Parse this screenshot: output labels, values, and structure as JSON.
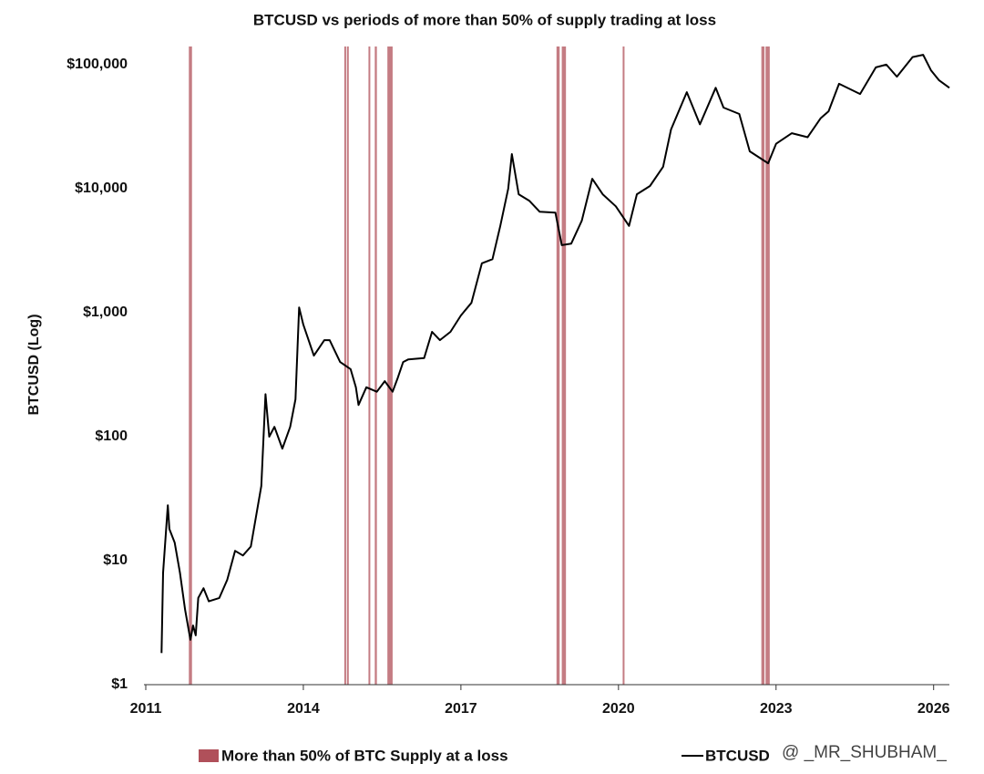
{
  "chart_data": {
    "type": "line",
    "title": "BTCUSD vs periods of more than 50% of supply trading at loss",
    "y_label": "BTCUSD (Log)",
    "log_y": true,
    "xlim": [
      2011,
      2026.3
    ],
    "ylim": [
      1,
      140000
    ],
    "xticks": [
      2011,
      2014,
      2017,
      2020,
      2023,
      2026
    ],
    "yticks": [
      {
        "value": 1,
        "label": "$1"
      },
      {
        "value": 10,
        "label": "$10"
      },
      {
        "value": 100,
        "label": "$100"
      },
      {
        "value": 1000,
        "label": "$1,000"
      },
      {
        "value": 10000,
        "label": "$10,000"
      },
      {
        "value": 100000,
        "label": "$100,000"
      }
    ],
    "bands": {
      "name": "More than 50% of BTC Supply at a loss",
      "color": "#b0505a",
      "ranges": [
        [
          2011.82,
          2011.88
        ],
        [
          2014.78,
          2014.81
        ],
        [
          2014.83,
          2014.85
        ],
        [
          2015.24,
          2015.27
        ],
        [
          2015.36,
          2015.4
        ],
        [
          2015.6,
          2015.7
        ],
        [
          2018.82,
          2018.88
        ],
        [
          2018.92,
          2019.0
        ],
        [
          2020.08,
          2020.11
        ],
        [
          2022.72,
          2022.78
        ],
        [
          2022.8,
          2022.88
        ]
      ]
    },
    "x": [
      2011.3,
      2011.33,
      2011.42,
      2011.45,
      2011.55,
      2011.65,
      2011.75,
      2011.85,
      2011.9,
      2011.95,
      2012.0,
      2012.1,
      2012.2,
      2012.4,
      2012.55,
      2012.7,
      2012.85,
      2013.0,
      2013.2,
      2013.28,
      2013.35,
      2013.45,
      2013.6,
      2013.75,
      2013.85,
      2013.92,
      2014.0,
      2014.1,
      2014.2,
      2014.4,
      2014.5,
      2014.7,
      2014.9,
      2015.0,
      2015.05,
      2015.2,
      2015.4,
      2015.55,
      2015.7,
      2015.8,
      2015.9,
      2016.0,
      2016.3,
      2016.45,
      2016.6,
      2016.8,
      2017.0,
      2017.2,
      2017.4,
      2017.6,
      2017.75,
      2017.9,
      2017.97,
      2018.1,
      2018.3,
      2018.5,
      2018.8,
      2018.92,
      2019.1,
      2019.3,
      2019.5,
      2019.7,
      2019.95,
      2020.2,
      2020.35,
      2020.6,
      2020.85,
      2021.0,
      2021.3,
      2021.55,
      2021.85,
      2022.0,
      2022.3,
      2022.5,
      2022.85,
      2023.0,
      2023.3,
      2023.6,
      2023.85,
      2024.0,
      2024.2,
      2024.6,
      2024.9,
      2025.1,
      2025.3,
      2025.6,
      2025.8,
      2025.95,
      2026.1,
      2026.3
    ],
    "series": [
      {
        "name": "BTCUSD",
        "color": "#000000",
        "values": [
          1.8,
          8,
          28,
          18,
          14,
          8,
          4,
          2.3,
          3,
          2.5,
          5,
          6,
          4.7,
          5,
          7,
          12,
          11,
          13,
          40,
          220,
          100,
          120,
          80,
          120,
          200,
          1100,
          800,
          600,
          450,
          600,
          600,
          400,
          350,
          250,
          180,
          250,
          230,
          280,
          230,
          300,
          400,
          420,
          430,
          700,
          600,
          700,
          950,
          1200,
          2500,
          2700,
          5000,
          10000,
          19000,
          9000,
          8000,
          6500,
          6400,
          3500,
          3600,
          5500,
          12000,
          9000,
          7200,
          5000,
          9000,
          10500,
          15000,
          30000,
          60000,
          33000,
          65000,
          45000,
          40000,
          20000,
          16000,
          23000,
          28000,
          26000,
          37000,
          42000,
          70000,
          58000,
          95000,
          100000,
          80000,
          115000,
          120000,
          90000,
          75000,
          65000
        ]
      }
    ],
    "watermark": "@ _MR_SHUBHAM_"
  }
}
